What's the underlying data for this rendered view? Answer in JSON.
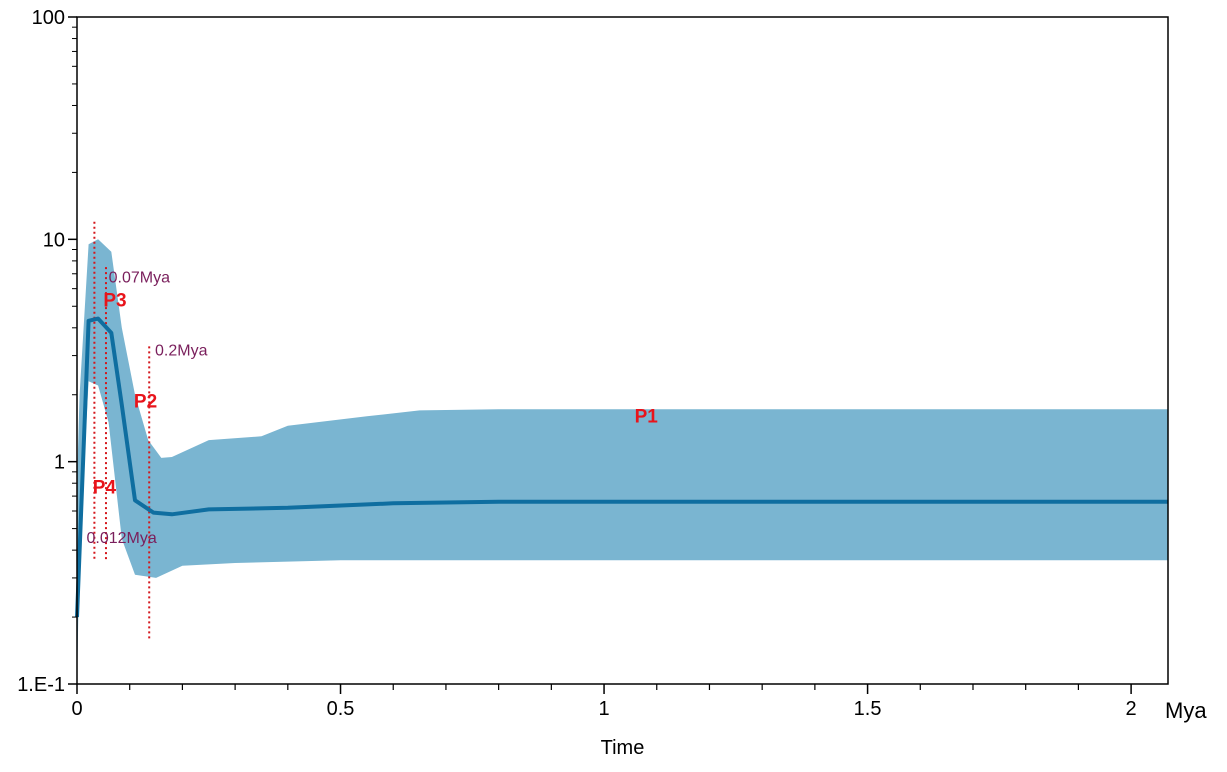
{
  "chart_data": {
    "type": "area",
    "xlabel": "Time",
    "x_unit": "Mya",
    "ylabel": "",
    "xlim": [
      0,
      2.07
    ],
    "ylim": [
      0.1,
      100
    ],
    "yscale": "log",
    "grid": false,
    "x_ticks": [
      {
        "value": 0,
        "label": "0"
      },
      {
        "value": 0.5,
        "label": "0.5"
      },
      {
        "value": 1,
        "label": "1"
      },
      {
        "value": 1.5,
        "label": "1.5"
      },
      {
        "value": 2,
        "label": "2"
      }
    ],
    "y_ticks": [
      {
        "value": 0.1,
        "label": "1.E-1"
      },
      {
        "value": 1,
        "label": "1"
      },
      {
        "value": 10,
        "label": "10"
      },
      {
        "value": 100,
        "label": "100"
      }
    ],
    "colors": {
      "band": "#7ab5d1",
      "median": "#0f6ea0",
      "marker": "#d4161b"
    },
    "series": [
      {
        "role": "median",
        "points": [
          [
            0,
            0.2
          ],
          [
            0.022,
            4.3
          ],
          [
            0.04,
            4.4
          ],
          [
            0.065,
            3.8
          ],
          [
            0.085,
            1.8
          ],
          [
            0.11,
            0.67
          ],
          [
            0.145,
            0.59
          ],
          [
            0.18,
            0.58
          ],
          [
            0.25,
            0.61
          ],
          [
            0.4,
            0.62
          ],
          [
            0.6,
            0.65
          ],
          [
            0.8,
            0.66
          ],
          [
            2.07,
            0.66
          ]
        ]
      },
      {
        "role": "upper",
        "points": [
          [
            0,
            0.8
          ],
          [
            0.005,
            2.0
          ],
          [
            0.022,
            9.5
          ],
          [
            0.04,
            10.0
          ],
          [
            0.065,
            8.8
          ],
          [
            0.085,
            4.0
          ],
          [
            0.11,
            2.0
          ],
          [
            0.135,
            1.25
          ],
          [
            0.16,
            1.04
          ],
          [
            0.18,
            1.05
          ],
          [
            0.25,
            1.25
          ],
          [
            0.35,
            1.3
          ],
          [
            0.4,
            1.45
          ],
          [
            0.55,
            1.6
          ],
          [
            0.65,
            1.7
          ],
          [
            0.8,
            1.72
          ],
          [
            2.07,
            1.72
          ]
        ]
      },
      {
        "role": "lower",
        "points": [
          [
            0,
            0.1
          ],
          [
            0.005,
            0.4
          ],
          [
            0.022,
            2.3
          ],
          [
            0.04,
            2.2
          ],
          [
            0.06,
            1.5
          ],
          [
            0.085,
            0.45
          ],
          [
            0.11,
            0.31
          ],
          [
            0.15,
            0.3
          ],
          [
            0.2,
            0.34
          ],
          [
            0.3,
            0.35
          ],
          [
            0.5,
            0.36
          ],
          [
            2.07,
            0.36
          ]
        ]
      }
    ],
    "markers": [
      {
        "x": 0.033,
        "y_top": 12,
        "y_bottom": 0.36
      },
      {
        "x": 0.055,
        "y_top": 7.5,
        "y_bottom": 0.36
      },
      {
        "x": 0.137,
        "y_top": 3.3,
        "y_bottom": 0.16
      }
    ],
    "annotations": {
      "periods": [
        {
          "text": "P1",
          "x": 1.08,
          "y": 1.5
        },
        {
          "text": "P2",
          "x": 0.108,
          "y": 1.75
        },
        {
          "text": "P3",
          "x": 0.05,
          "y": 5.0
        },
        {
          "text": "P4",
          "x": 0.03,
          "y": 0.72
        }
      ],
      "times": [
        {
          "text": "0.07Mya",
          "x": 0.06,
          "y": 6.4
        },
        {
          "text": "0.2Mya",
          "x": 0.148,
          "y": 3.0
        },
        {
          "text": "0.012Mya",
          "x": 0.018,
          "y": 0.43
        }
      ]
    }
  }
}
